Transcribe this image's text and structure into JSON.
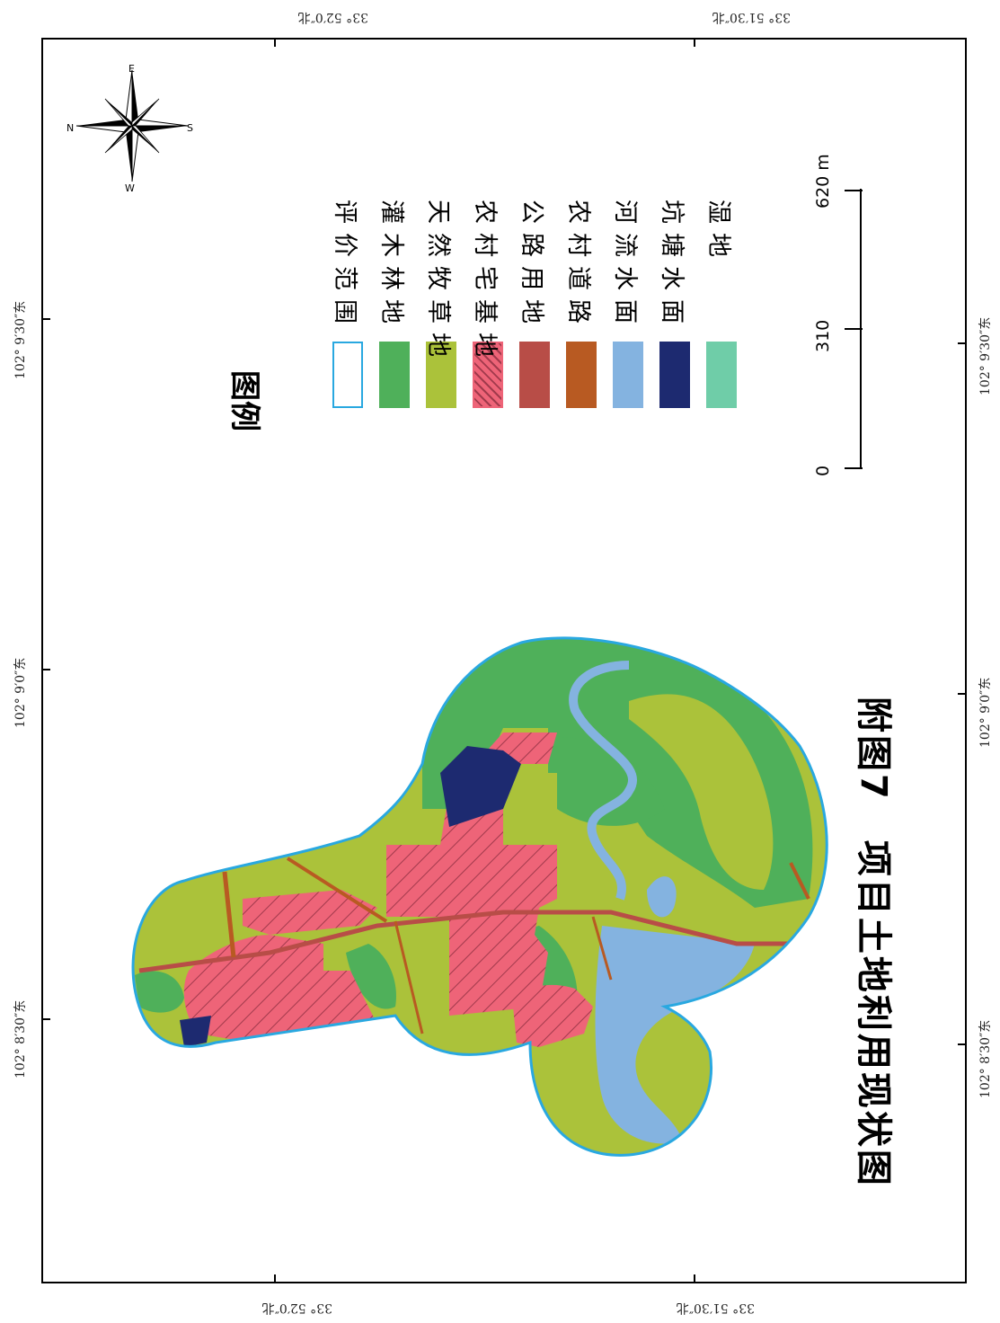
{
  "title": "附图7　项目土地利用现状图",
  "legend": {
    "title": "图例",
    "items": [
      {
        "label": "评价范围",
        "color": "#ffffff",
        "border": "#29a8e0",
        "pattern": "none"
      },
      {
        "label": "灌木林地",
        "color": "#4fb05a",
        "border": "#4fb05a",
        "pattern": "none"
      },
      {
        "label": "天然牧草地",
        "color": "#abc23a",
        "border": "#abc23a",
        "pattern": "none"
      },
      {
        "label": "农村宅基地",
        "color": "#ee6478",
        "border": "#ee6478",
        "pattern": "hatch"
      },
      {
        "label": "公路用地",
        "color": "#b84d47",
        "border": "#b84d47",
        "pattern": "none"
      },
      {
        "label": "农村道路",
        "color": "#b85a22",
        "border": "#b85a22",
        "pattern": "none"
      },
      {
        "label": "河流水面",
        "color": "#84b3e0",
        "border": "#84b3e0",
        "pattern": "none"
      },
      {
        "label": "坑塘水面",
        "color": "#1d2a70",
        "border": "#1d2a70",
        "pattern": "none"
      },
      {
        "label": "湿地",
        "color": "#6fcda8",
        "border": "#6fcda8",
        "pattern": "none"
      }
    ]
  },
  "scale_bar": {
    "labels": [
      "0",
      "310",
      "620 m"
    ],
    "unit": "m"
  },
  "north_arrow": {
    "icon": "compass-rose-icon",
    "labels": {
      "n": "N",
      "e": "E",
      "s": "S",
      "w": "W"
    }
  },
  "coordinates": {
    "lat_top_left": "33° 52′0″北",
    "lat_top_right": "33° 51′30″北",
    "lat_bottom_left": "33° 52′0″北",
    "lat_bottom_right": "33° 51′30″北",
    "lon_left": [
      "102° 9′30″东",
      "102° 9′0″东",
      "102° 8′30″东"
    ],
    "lon_right": [
      "102° 9′30″东",
      "102° 9′0″东",
      "102° 8′30″东"
    ]
  }
}
